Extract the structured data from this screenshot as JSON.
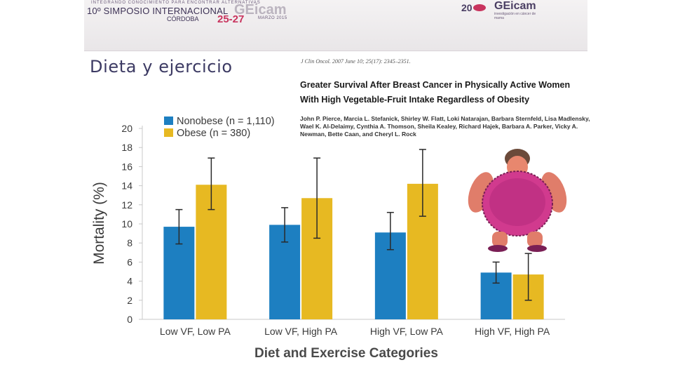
{
  "banner": {
    "tagline": "INTEGRANDO CONOCIMIENTO PARA ENCONTRAR ALTERNATIVAS",
    "symposium": "10º SIMPOSIO INTERNACIONAL",
    "logo_ghost": "GEicam",
    "city": "CÓRDOBA",
    "dates": "25-27",
    "month": "MARZO 2015",
    "anniversary": "20",
    "logo": "GEicam",
    "logo_subtitle": "investigación en cáncer de mama"
  },
  "slide_title": "Dieta y ejercicio",
  "article": {
    "citation": "J Clin Oncol. 2007 June 10; 25(17): 2345–2351.",
    "title_line1": "Greater Survival After Breast Cancer in Physically Active Women",
    "title_line2": "With High Vegetable-Fruit Intake Regardless of Obesity",
    "authors": "John P. Pierce, Marcia L. Stefanick, Shirley W. Flatt, Loki Natarajan, Barbara Sternfeld, Lisa Madlensky, Wael K. Al-Delaimy, Cynthia A. Thomson, Sheila Kealey, Richard Hajek, Barbara A. Parker, Vicky A. Newman, Bette Caan, and Cheryl L. Rock"
  },
  "chart_data": {
    "type": "bar",
    "title": "",
    "xlabel": "Diet and Exercise Categories",
    "ylabel": "Mortality (%)",
    "ylim": [
      0,
      20
    ],
    "yticks": [
      "0",
      "2",
      "4",
      "6",
      "8",
      "10",
      "12",
      "14",
      "16",
      "18",
      "20"
    ],
    "categories": [
      "Low VF, Low PA",
      "Low VF, High PA",
      "High VF, Low PA",
      "High VF, High PA"
    ],
    "series": [
      {
        "name": "Nonobese (n = 1,110)",
        "color": "#1d7fc1",
        "values": [
          9.7,
          9.9,
          9.1,
          4.9
        ],
        "error_low": [
          7.9,
          8.1,
          7.3,
          3.8
        ],
        "error_high": [
          11.5,
          11.7,
          11.2,
          6.0
        ]
      },
      {
        "name": "Obese (n = 380)",
        "color": "#e7b922",
        "values": [
          14.1,
          12.7,
          14.2,
          4.7
        ],
        "error_low": [
          11.5,
          8.5,
          10.8,
          2.0
        ],
        "error_high": [
          16.9,
          16.9,
          17.8,
          6.9
        ]
      }
    ],
    "legend": "top-left",
    "grid": false
  },
  "illustration": {
    "icon": "cartoon-woman-icon"
  }
}
